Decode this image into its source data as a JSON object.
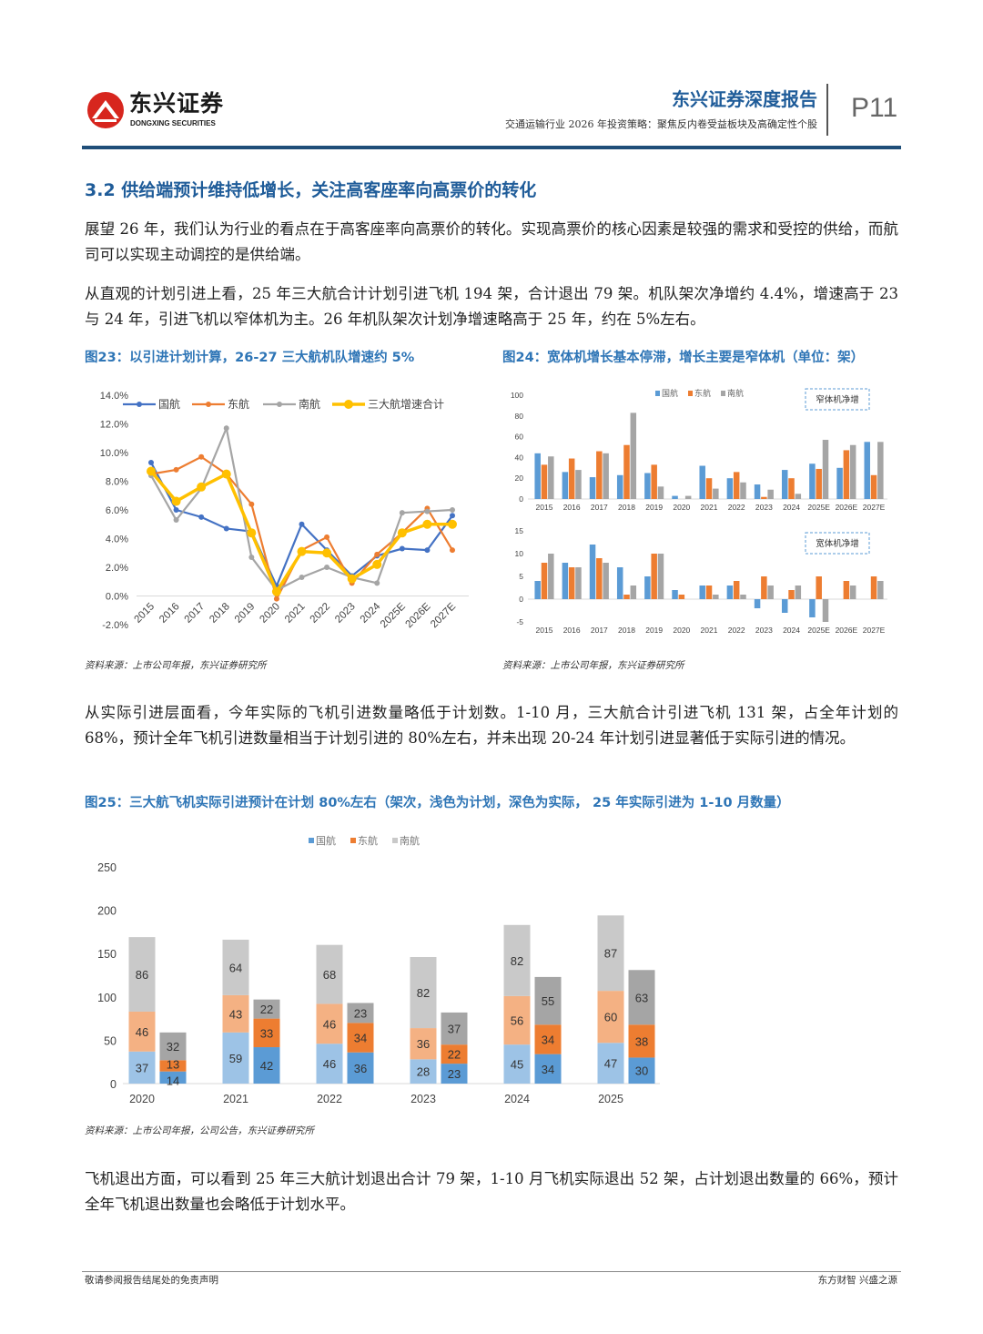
{
  "header": {
    "logo_cn": "东兴证券",
    "logo_en": "DONGXING SECURITIES",
    "report_type": "东兴证券深度报告",
    "subtitle": "交通运输行业 2026 年投资策略：聚焦反内卷受益板块及高确定性个股",
    "page": "P11"
  },
  "section_title": "3.2 供给端预计维持低增长，关注高客座率向高票价的转化",
  "paragraphs": [
    "展望 26 年，我们认为行业的看点在于高客座率向高票价的转化。实现高票价的核心因素是较强的需求和受控的供给，而航司可以实现主动调控的是供给端。",
    "从直观的计划引进上看，25 年三大航合计计划引进飞机 194 架，合计退出 79 架。机队架次净增约 4.4%，增速高于 23 与 24 年，引进飞机以窄体机为主。26 年机队架次计划净增速略高于 25 年，约在 5%左右。",
    "从实际引进层面看，今年实际的飞机引进数量略低于计划数。1-10 月，三大航合计引进飞机 131 架，占全年计划的 68%，预计全年飞机引进数量相当于计划引进的 80%左右，并未出现 20-24 年计划引进显著低于实际引进的情况。",
    "飞机退出方面，可以看到 25 年三大航计划退出合计 79 架，1-10 月飞机实际退出 52 架，占计划退出数量的 66%，预计全年飞机退出数量也会略低于计划水平。"
  ],
  "figures": {
    "fig23": {
      "title": "图23：以引进计划计算，26-27 三大航机队增速约 5%",
      "source": "资料来源：上市公司年报，东兴证券研究所"
    },
    "fig24": {
      "title": "图24：宽体机增长基本停滞，增长主要是窄体机（单位：架）",
      "source": "资料来源：上市公司年报，东兴证券研究所"
    },
    "fig25": {
      "title": "图25：三大航飞机实际引进预计在计划 80%左右（架次，浅色为计划，深色为实际， 25 年实际引进为 1-10 月数量）",
      "source": "资料来源：上市公司年报，公司公告，东兴证券研究所"
    }
  },
  "footer": {
    "left": "敬请参阅报告结尾处的免责声明",
    "right": "东方财智 兴盛之源"
  },
  "chart_data": [
    {
      "type": "line",
      "categories": [
        "2015",
        "2016",
        "2017",
        "2018",
        "2019",
        "2020",
        "2021",
        "2022",
        "2023",
        "2024",
        "2025E",
        "2026E",
        "2027E"
      ],
      "ylim": [
        -2,
        14
      ],
      "yticks": [
        "-2.0%",
        "0.0%",
        "2.0%",
        "4.0%",
        "6.0%",
        "8.0%",
        "10.0%",
        "12.0%",
        "14.0%"
      ],
      "legend": "top",
      "grid": false,
      "series": [
        {
          "name": "国航",
          "color": "#4472C4",
          "values": [
            9.3,
            6.0,
            5.5,
            4.7,
            4.5,
            0.7,
            5.0,
            3.2,
            1.4,
            2.8,
            3.3,
            3.2,
            5.6
          ]
        },
        {
          "name": "东航",
          "color": "#ED7D31",
          "values": [
            8.5,
            8.8,
            9.7,
            8.5,
            6.4,
            -0.2,
            3.2,
            4.1,
            0.9,
            2.9,
            4.4,
            6.1,
            3.2
          ]
        },
        {
          "name": "南航",
          "color": "#A5A5A5",
          "values": [
            8.4,
            5.3,
            7.5,
            11.7,
            2.7,
            0.4,
            1.3,
            2.0,
            1.3,
            0.9,
            5.8,
            5.9,
            6.0
          ]
        },
        {
          "name": "三大航增速合计",
          "color": "#FFC000",
          "values": [
            8.7,
            6.6,
            7.6,
            8.5,
            4.4,
            0.3,
            3.1,
            3.0,
            1.2,
            2.2,
            4.4,
            5.0,
            5.0
          ]
        }
      ]
    },
    {
      "type": "bar",
      "categories": [
        "2015",
        "2016",
        "2017",
        "2018",
        "2019",
        "2020",
        "2021",
        "2022",
        "2023",
        "2024",
        "2025E",
        "2026E",
        "2027E"
      ],
      "panels": [
        {
          "label": "窄体机净增",
          "ylim": [
            0,
            100
          ],
          "yticks": [
            "0",
            "20",
            "40",
            "60",
            "80",
            "100"
          ],
          "series": [
            {
              "name": "国航",
              "color": "#5B9BD5",
              "values": [
                44,
                26,
                21,
                23,
                25,
                3,
                32,
                20,
                14,
                28,
                34,
                30,
                55
              ]
            },
            {
              "name": "东航",
              "color": "#ED7D31",
              "values": [
                33,
                39,
                46,
                52,
                33,
                0,
                20,
                26,
                2,
                20,
                29,
                47,
                23
              ]
            },
            {
              "name": "南航",
              "color": "#A5A5A5",
              "values": [
                41,
                28,
                44,
                83,
                12,
                3,
                10,
                16,
                9,
                5,
                57,
                52,
                55
              ]
            }
          ]
        },
        {
          "label": "宽体机净增",
          "ylim": [
            -5,
            15
          ],
          "yticks": [
            "-5",
            "0",
            "5",
            "10",
            "15"
          ],
          "series": [
            {
              "name": "国航",
              "color": "#5B9BD5",
              "values": [
                4,
                8,
                12,
                7,
                5,
                2,
                3,
                3,
                -2,
                -3,
                -4,
                0,
                0
              ]
            },
            {
              "name": "东航",
              "color": "#ED7D31",
              "values": [
                8,
                7,
                9,
                1,
                10,
                1,
                3,
                4,
                5,
                2,
                5,
                4,
                5
              ]
            },
            {
              "name": "南航",
              "color": "#A5A5A5",
              "values": [
                10,
                7,
                8,
                3,
                10,
                0,
                1,
                1,
                3,
                3,
                -5,
                3,
                4
              ]
            }
          ]
        }
      ],
      "legend": "top"
    },
    {
      "type": "bar",
      "stacked": true,
      "categories": [
        "2020",
        "2021",
        "2022",
        "2023",
        "2024",
        "2025"
      ],
      "ylim": [
        0,
        250
      ],
      "yticks": [
        "0",
        "50",
        "100",
        "150",
        "200",
        "250"
      ],
      "legend": "top",
      "legend_entries": [
        "国航",
        "东航",
        "南航"
      ],
      "plan": {
        "colors": [
          "#9DC3E6",
          "#F4B183",
          "#C9C9C9"
        ],
        "series": [
          [
            37,
            59,
            46,
            28,
            45,
            47
          ],
          [
            46,
            43,
            46,
            36,
            56,
            60
          ],
          [
            86,
            64,
            68,
            82,
            82,
            87
          ]
        ]
      },
      "actual": {
        "colors": [
          "#5B9BD5",
          "#ED7D31",
          "#A5A5A5"
        ],
        "series": [
          [
            14,
            42,
            36,
            23,
            34,
            30
          ],
          [
            13,
            33,
            34,
            22,
            34,
            38
          ],
          [
            32,
            22,
            23,
            37,
            55,
            63
          ]
        ]
      }
    }
  ]
}
